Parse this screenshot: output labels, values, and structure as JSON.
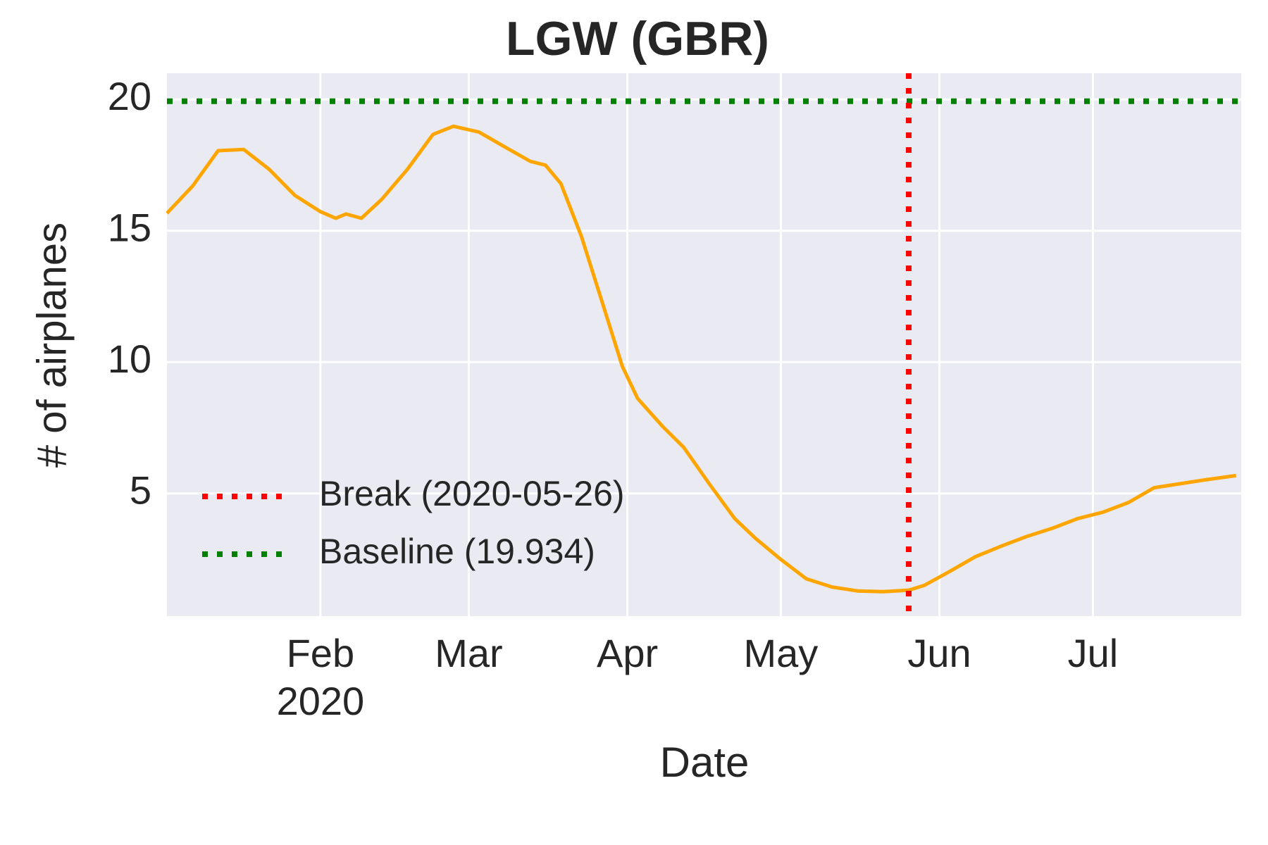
{
  "chart_data": {
    "type": "line",
    "title": "LGW (GBR)",
    "x_label": "Date",
    "y_label": "# of airplanes",
    "x": [
      "2020-01-02",
      "2020-01-07",
      "2020-01-12",
      "2020-01-17",
      "2020-01-22",
      "2020-01-27",
      "2020-02-01",
      "2020-02-04",
      "2020-02-06",
      "2020-02-09",
      "2020-02-13",
      "2020-02-18",
      "2020-02-23",
      "2020-02-27",
      "2020-03-03",
      "2020-03-08",
      "2020-03-13",
      "2020-03-16",
      "2020-03-19",
      "2020-03-23",
      "2020-03-27",
      "2020-03-31",
      "2020-04-03",
      "2020-04-08",
      "2020-04-12",
      "2020-04-17",
      "2020-04-22",
      "2020-04-26",
      "2020-05-01",
      "2020-05-06",
      "2020-05-11",
      "2020-05-16",
      "2020-05-21",
      "2020-05-26",
      "2020-05-29",
      "2020-06-03",
      "2020-06-08",
      "2020-06-13",
      "2020-06-18",
      "2020-06-23",
      "2020-06-28",
      "2020-07-03",
      "2020-07-08",
      "2020-07-13",
      "2020-07-18",
      "2020-07-23",
      "2020-07-29"
    ],
    "series": [
      {
        "name": "airplanes",
        "color": "#ffa500",
        "values": [
          15.67,
          16.7,
          18.05,
          18.1,
          17.34,
          16.35,
          15.73,
          15.48,
          15.64,
          15.48,
          16.2,
          17.34,
          18.67,
          18.98,
          18.76,
          18.2,
          17.65,
          17.5,
          16.8,
          14.8,
          12.33,
          9.85,
          8.62,
          7.53,
          6.76,
          5.37,
          4.04,
          3.3,
          2.49,
          1.75,
          1.44,
          1.29,
          1.26,
          1.32,
          1.5,
          2.03,
          2.59,
          2.99,
          3.36,
          3.67,
          4.04,
          4.29,
          4.66,
          5.22,
          5.37,
          5.52,
          5.68
        ]
      }
    ],
    "xlim": [
      "2020-01-02",
      "2020-07-30"
    ],
    "xticks": [
      {
        "value": "2020-02-01",
        "label": "Feb\n2020"
      },
      {
        "value": "2020-03-01",
        "label": "Mar"
      },
      {
        "value": "2020-04-01",
        "label": "Apr"
      },
      {
        "value": "2020-05-01",
        "label": "May"
      },
      {
        "value": "2020-06-01",
        "label": "Jun"
      },
      {
        "value": "2020-07-01",
        "label": "Jul"
      }
    ],
    "ylim": [
      0.33,
      21
    ],
    "yticks": [
      5,
      10,
      15,
      20
    ],
    "grid": true,
    "legend_position": "lower left",
    "break": {
      "x": "2020-05-26",
      "label": "Break (2020-05-26)",
      "color": "#ff0000"
    },
    "baseline": {
      "y": 19.934,
      "label": "Baseline (19.934)",
      "color": "#008000"
    }
  }
}
